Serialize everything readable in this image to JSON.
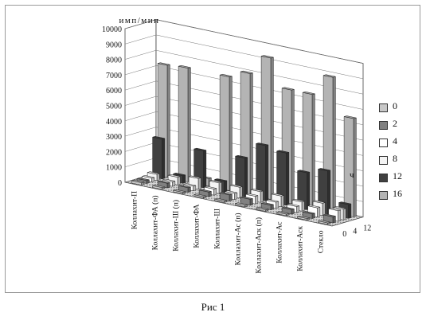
{
  "figure": {
    "caption": "Рис 1"
  },
  "chart_data": {
    "type": "bar3d",
    "title": "",
    "ylabel": "имп/мин",
    "depth_axis_label": "ч",
    "ylim": [
      0,
      10000
    ],
    "y_ticks": [
      0,
      1000,
      2000,
      3000,
      4000,
      5000,
      6000,
      7000,
      8000,
      9000,
      10000
    ],
    "categories": [
      "Коллахит-П",
      "Коллахит-ФА (п)",
      "Коллахит-Ш (п)",
      "Коллахит-ФА",
      "Коллахит-Ш",
      "Коллахит-Ас (п)",
      "Коллахит-Аск (п)",
      "Коллахит-Ас",
      "Коллахит-Аск",
      "Стекло"
    ],
    "depth_tick_labels": [
      "0",
      "4",
      "12"
    ],
    "series": [
      {
        "name": "0",
        "color": "#c8c8c8",
        "values": [
          150,
          120,
          100,
          100,
          100,
          100,
          100,
          100,
          100,
          100
        ]
      },
      {
        "name": "2",
        "color": "#808080",
        "values": [
          200,
          300,
          300,
          300,
          400,
          400,
          300,
          300,
          300,
          400
        ]
      },
      {
        "name": "4",
        "color": "#ffffff",
        "values": [
          250,
          300,
          300,
          400,
          400,
          500,
          400,
          400,
          600,
          700
        ]
      },
      {
        "name": "8",
        "color": "#f4f4f4",
        "values": [
          400,
          500,
          700,
          700,
          700,
          700,
          700,
          600,
          800,
          700
        ]
      },
      {
        "name": "12",
        "color": "#404040",
        "values": [
          2600,
          500,
          2400,
          700,
          2500,
          3600,
          3400,
          2400,
          2800,
          900
        ]
      },
      {
        "name": "16",
        "color": "#b4b4b4",
        "values": [
          7300,
          7400,
          500,
          7400,
          7900,
          9200,
          7400,
          7400,
          8800,
          6400
        ]
      }
    ]
  }
}
